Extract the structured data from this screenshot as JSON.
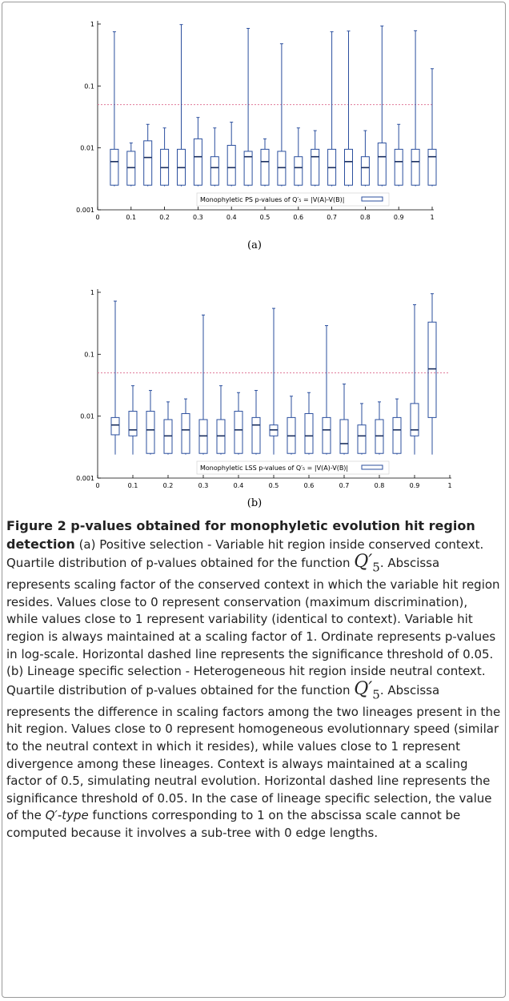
{
  "chart_data": [
    {
      "type": "box",
      "label": "(a)",
      "log_y": true,
      "xlim": [
        0,
        1
      ],
      "ylim": [
        0.001,
        1
      ],
      "xticks": [
        0,
        0.1,
        0.2,
        0.3,
        0.4,
        0.5,
        0.6,
        0.7,
        0.8,
        0.9,
        1
      ],
      "yticks": [
        0.001,
        0.01,
        0.1,
        1
      ],
      "color": "#2b4f9e",
      "threshold": 0.05,
      "threshold_color": "#e07a9a",
      "legend": "Monophyletic PS p-values of Q′₅ = |V(A)-V(B)|",
      "x": [
        0.05,
        0.1,
        0.15,
        0.2,
        0.25,
        0.3,
        0.35,
        0.4,
        0.45,
        0.5,
        0.55,
        0.6,
        0.65,
        0.7,
        0.75,
        0.8,
        0.85,
        0.9,
        0.95,
        1
      ],
      "min": [
        0.0024,
        0.0024,
        0.0024,
        0.0024,
        0.0024,
        0.0024,
        0.0024,
        0.0024,
        0.0024,
        0.0024,
        0.0024,
        0.0024,
        0.0024,
        0.0024,
        0.0024,
        0.0024,
        0.0024,
        0.0024,
        0.0024,
        0.0024
      ],
      "q1": [
        0.0025,
        0.0025,
        0.0025,
        0.0025,
        0.0025,
        0.0025,
        0.0025,
        0.0025,
        0.0025,
        0.0025,
        0.0025,
        0.0025,
        0.0025,
        0.0025,
        0.0025,
        0.0025,
        0.0025,
        0.0025,
        0.0025,
        0.0025
      ],
      "median": [
        0.006,
        0.0048,
        0.007,
        0.0048,
        0.0048,
        0.0072,
        0.0048,
        0.0048,
        0.0072,
        0.006,
        0.0048,
        0.0048,
        0.0072,
        0.0048,
        0.006,
        0.0048,
        0.0072,
        0.006,
        0.006,
        0.0072
      ],
      "q3": [
        0.0095,
        0.0088,
        0.013,
        0.0095,
        0.0095,
        0.014,
        0.0072,
        0.011,
        0.0088,
        0.0095,
        0.0088,
        0.0072,
        0.0095,
        0.0095,
        0.0095,
        0.0072,
        0.012,
        0.0095,
        0.0095,
        0.0095
      ],
      "max": [
        0.75,
        0.012,
        0.024,
        0.021,
        0.98,
        0.031,
        0.021,
        0.026,
        0.85,
        0.014,
        0.48,
        0.021,
        0.019,
        0.75,
        0.77,
        0.019,
        0.93,
        0.024,
        0.78,
        0.19
      ]
    },
    {
      "type": "box",
      "label": "(b)",
      "log_y": true,
      "xlim": [
        0,
        1
      ],
      "ylim": [
        0.001,
        1
      ],
      "xticks": [
        0,
        0.1,
        0.2,
        0.3,
        0.4,
        0.5,
        0.6,
        0.7,
        0.8,
        0.9,
        1
      ],
      "yticks": [
        0.001,
        0.01,
        0.1,
        1
      ],
      "color": "#2b4f9e",
      "threshold": 0.05,
      "threshold_color": "#e07a9a",
      "legend": "Monophyletic LSS p-values of Q′₅ = |V(A)-V(B)|",
      "x": [
        0.05,
        0.1,
        0.15,
        0.2,
        0.25,
        0.3,
        0.35,
        0.4,
        0.45,
        0.5,
        0.55,
        0.6,
        0.65,
        0.7,
        0.75,
        0.8,
        0.85,
        0.9,
        0.95
      ],
      "min": [
        0.0024,
        0.0024,
        0.0024,
        0.0024,
        0.0024,
        0.0024,
        0.0024,
        0.0024,
        0.0024,
        0.0024,
        0.0024,
        0.0024,
        0.0024,
        0.0024,
        0.0024,
        0.0024,
        0.0024,
        0.0024,
        0.0024
      ],
      "q1": [
        0.005,
        0.0048,
        0.0025,
        0.0025,
        0.0025,
        0.0025,
        0.0025,
        0.0025,
        0.0025,
        0.0048,
        0.0025,
        0.0025,
        0.0025,
        0.0025,
        0.0025,
        0.0025,
        0.0025,
        0.0048,
        0.0095
      ],
      "median": [
        0.0072,
        0.006,
        0.006,
        0.0048,
        0.006,
        0.0048,
        0.0048,
        0.006,
        0.0072,
        0.006,
        0.0048,
        0.0048,
        0.006,
        0.0036,
        0.0048,
        0.0048,
        0.006,
        0.006,
        0.058
      ],
      "q3": [
        0.0095,
        0.012,
        0.012,
        0.0088,
        0.011,
        0.0088,
        0.0088,
        0.012,
        0.0095,
        0.0072,
        0.0095,
        0.011,
        0.0095,
        0.0088,
        0.0072,
        0.0088,
        0.0095,
        0.016,
        0.33
      ],
      "max": [
        0.72,
        0.031,
        0.026,
        0.017,
        0.019,
        0.43,
        0.031,
        0.024,
        0.026,
        0.55,
        0.021,
        0.024,
        0.29,
        0.033,
        0.016,
        0.017,
        0.019,
        0.63,
        0.95
      ]
    }
  ],
  "caption": {
    "title": "Figure 2 p-values obtained for monophyletic evolution hit region detection",
    "parts": [
      " (a) Positive selection - Variable hit region inside conserved context. Quartile distribution of p-values obtained for the function ",
      ". Abscissa represents scaling factor of the conserved context in which the variable hit region resides. Values close to 0 represent conservation (maximum discrimination), while values close to 1 represent variability (identical to context). Variable hit region is always maintained at a scaling factor of 1. Ordinate represents p-values in log-scale. Horizontal dashed line represents the significance threshold of 0.05. (b) Lineage specific selection - Heterogeneous hit region inside neutral context. Quartile distribution of p-values obtained for the function ",
      ". Abscissa represents the difference in scaling factors among the two lineages present in the hit region. Values close to 0 represent homogeneous evolutionnary speed (similar to the neutral context in which it resides), while values close to 1 represent divergence among these lineages. Context is always maintained at a scaling factor of 0.5, simulating neutral evolution. Horizontal dashed line represents the significance threshold of 0.05. In the case of lineage specific selection, the value of the ",
      " functions corresponding to 1 on the abscissa scale cannot be computed because it involves a sub-tree with 0 edge lengths."
    ],
    "math": [
      {
        "base": "Q′",
        "sub": "5"
      },
      {
        "base": "Q′",
        "sub": "5"
      }
    ],
    "italic": "Q′-type"
  }
}
